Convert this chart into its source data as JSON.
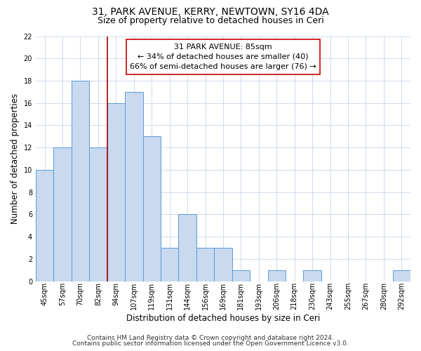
{
  "title": "31, PARK AVENUE, KERRY, NEWTOWN, SY16 4DA",
  "subtitle": "Size of property relative to detached houses in Ceri",
  "xlabel": "Distribution of detached houses by size in Ceri",
  "ylabel": "Number of detached properties",
  "bar_labels": [
    "45sqm",
    "57sqm",
    "70sqm",
    "82sqm",
    "94sqm",
    "107sqm",
    "119sqm",
    "131sqm",
    "144sqm",
    "156sqm",
    "169sqm",
    "181sqm",
    "193sqm",
    "206sqm",
    "218sqm",
    "230sqm",
    "243sqm",
    "255sqm",
    "267sqm",
    "280sqm",
    "292sqm"
  ],
  "bar_values": [
    10,
    12,
    18,
    12,
    16,
    17,
    13,
    3,
    6,
    3,
    3,
    1,
    0,
    1,
    0,
    1,
    0,
    0,
    0,
    0,
    1
  ],
  "bar_color": "#c8d9f0",
  "bar_edge_color": "#5b9bd5",
  "highlight_bar_index": 3,
  "highlight_line_color": "#aa0000",
  "annotation_line1": "31 PARK AVENUE: 85sqm",
  "annotation_line2": "← 34% of detached houses are smaller (40)",
  "annotation_line3": "66% of semi-detached houses are larger (76) →",
  "annotation_box_edge_color": "#cc0000",
  "ylim": [
    0,
    22
  ],
  "yticks": [
    0,
    2,
    4,
    6,
    8,
    10,
    12,
    14,
    16,
    18,
    20,
    22
  ],
  "footer_line1": "Contains HM Land Registry data © Crown copyright and database right 2024.",
  "footer_line2": "Contains public sector information licensed under the Open Government Licence v3.0.",
  "title_fontsize": 10,
  "subtitle_fontsize": 9,
  "axis_label_fontsize": 8.5,
  "tick_fontsize": 7,
  "annotation_fontsize": 8,
  "footer_fontsize": 6.5
}
